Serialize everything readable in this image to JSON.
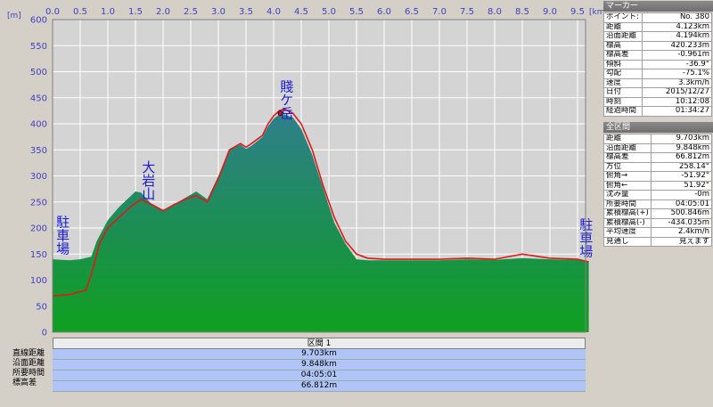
{
  "chart_data": {
    "type": "area",
    "x_unit": "[km]",
    "y_unit": "[m]",
    "xlim": [
      0,
      9.703
    ],
    "ylim": [
      0,
      600
    ],
    "x_ticks": [
      "0.0",
      "0.5",
      "1.0",
      "1.5",
      "2.0",
      "2.5",
      "3.0",
      "3.5",
      "4.0",
      "4.5",
      "5.0",
      "5.5",
      "6.0",
      "6.5",
      "7.0",
      "7.5",
      "8.0",
      "8.5",
      "9.0",
      "9.5"
    ],
    "y_ticks": [
      "0",
      "50",
      "100",
      "150",
      "200",
      "250",
      "300",
      "350",
      "400",
      "450",
      "500",
      "550",
      "600"
    ],
    "elevation": {
      "x": [
        0,
        0.3,
        0.5,
        0.7,
        0.8,
        1.0,
        1.2,
        1.4,
        1.5,
        1.6,
        1.8,
        2.0,
        2.2,
        2.4,
        2.6,
        2.8,
        3.0,
        3.2,
        3.4,
        3.5,
        3.6,
        3.8,
        3.9,
        4.0,
        4.1,
        4.2,
        4.35,
        4.5,
        4.7,
        4.9,
        5.1,
        5.3,
        5.5,
        5.7,
        6.0,
        7.0,
        7.5,
        8.0,
        8.5,
        9.0,
        9.5,
        9.703
      ],
      "y": [
        140,
        138,
        140,
        145,
        175,
        215,
        240,
        260,
        270,
        268,
        245,
        235,
        245,
        258,
        270,
        255,
        300,
        350,
        360,
        352,
        358,
        375,
        395,
        410,
        418,
        418,
        412,
        390,
        340,
        275,
        210,
        170,
        140,
        138,
        138,
        138,
        140,
        139,
        142,
        140,
        139,
        136
      ]
    },
    "gps_track": {
      "x": [
        0,
        0.3,
        0.5,
        0.6,
        0.7,
        0.85,
        1.0,
        1.2,
        1.4,
        1.6,
        1.8,
        2.0,
        2.2,
        2.4,
        2.6,
        2.8,
        3.0,
        3.2,
        3.4,
        3.5,
        3.6,
        3.8,
        3.9,
        4.0,
        4.1,
        4.2,
        4.35,
        4.5,
        4.7,
        4.9,
        5.1,
        5.3,
        5.5,
        5.7,
        6.0,
        7.0,
        7.5,
        8.0,
        8.5,
        9.0,
        9.5,
        9.703
      ],
      "y": [
        70,
        72,
        78,
        80,
        110,
        170,
        200,
        220,
        240,
        255,
        245,
        233,
        245,
        255,
        262,
        250,
        295,
        350,
        362,
        355,
        362,
        378,
        400,
        415,
        425,
        428,
        420,
        400,
        350,
        280,
        220,
        175,
        150,
        142,
        140,
        140,
        142,
        140,
        150,
        142,
        140,
        135
      ]
    },
    "annotations": [
      {
        "text": "駐車場",
        "x": 0.05,
        "y": 225
      },
      {
        "text": "大岩山",
        "x": 1.6,
        "y": 330
      },
      {
        "text": "賤ケ岳",
        "x": 4.1,
        "y": 485
      },
      {
        "text": "駐車場",
        "x": 9.65,
        "y": 220
      }
    ],
    "colors": {
      "plot_bg": "#d4d4d4",
      "grid": "#ffffff",
      "area_top": "#2f7f8a",
      "area_bottom": "#0fa020",
      "track": "#e01818"
    }
  },
  "marker": {
    "title": "マーカー",
    "rows": [
      {
        "k": "ポイント:",
        "v": "No. 380"
      },
      {
        "k": "距離",
        "v": "4.123km"
      },
      {
        "k": "沿面距離",
        "v": "4.194km"
      },
      {
        "k": "標高",
        "v": "420.233m"
      },
      {
        "k": "標高差",
        "v": "-0.961m"
      },
      {
        "k": "傾斜",
        "v": "-36.9°"
      },
      {
        "k": "勾配",
        "v": "-75.1%"
      },
      {
        "k": "速度",
        "v": "3.3km/h"
      },
      {
        "k": "日付",
        "v": "2015/12/27"
      },
      {
        "k": "時刻",
        "v": "10:12:08"
      },
      {
        "k": "経過時間",
        "v": "01:34:27"
      }
    ]
  },
  "all_section": {
    "title": "全区間",
    "rows": [
      {
        "k": "距離",
        "v": "9.703km"
      },
      {
        "k": "沿面距離",
        "v": "9.848km"
      },
      {
        "k": "標高差",
        "v": "66.812m"
      },
      {
        "k": "方位",
        "v": "258.14°"
      },
      {
        "k": "俯角→",
        "v": "-51.92°"
      },
      {
        "k": "俯角←",
        "v": "51.92°"
      },
      {
        "k": "沈み量",
        "v": "-0m"
      },
      {
        "k": "所要時間",
        "v": "04:05:01"
      },
      {
        "k": "累積標高(+)",
        "v": "500.846m"
      },
      {
        "k": "累積標高(-)",
        "v": "-434.035m"
      },
      {
        "k": "平均速度",
        "v": "2.4km/h"
      },
      {
        "k": "見通し",
        "v": "見えます"
      }
    ]
  },
  "section": {
    "title": "区間 1",
    "rows": [
      {
        "k": "直線距離",
        "v": "9.703km"
      },
      {
        "k": "沿面距離",
        "v": "9.848km"
      },
      {
        "k": "所要時間",
        "v": "04:05:01"
      },
      {
        "k": "標高差",
        "v": "66.812m"
      }
    ]
  }
}
